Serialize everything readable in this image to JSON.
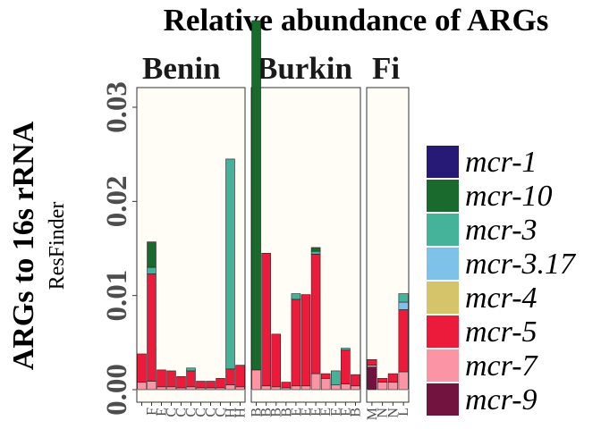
{
  "chart_data": {
    "type": "bar",
    "stacked": true,
    "title": "Relative abundance of ARGs",
    "ylabel": "ARGs to 16s rRNA",
    "ysublabel": "ResFinder",
    "ylim": [
      0,
      0.0405
    ],
    "yticks": [
      0.0,
      0.01,
      0.02,
      0.03
    ],
    "ytick_labels": [
      "0.00",
      "0.01",
      "0.02",
      "0.03"
    ],
    "panel_background": "#fffdf6",
    "legend": {
      "placement": "right"
    },
    "series_order": [
      "mcr-1",
      "mcr-10",
      "mcr-3",
      "mcr-3.17",
      "mcr-4",
      "mcr-5",
      "mcr-7",
      "mcr-9"
    ],
    "colors": {
      "mcr-1": "#271a76",
      "mcr-10": "#196a2c",
      "mcr-3": "#45b39a",
      "mcr-3.17": "#7ec2ea",
      "mcr-4": "#d6c46a",
      "mcr-5": "#ec1a3b",
      "mcr-7": "#fb94a4",
      "mcr-9": "#72133f"
    },
    "facets": [
      {
        "label": "Benin",
        "label_shown": "Benin",
        "bars": [
          {
            "tick": "",
            "segments": {
              "mcr-7": 0.0008,
              "mcr-5": 0.003
            }
          },
          {
            "tick": "F",
            "segments": {
              "mcr-7": 0.0009,
              "mcr-5": 0.0114,
              "mcr-3": 0.0007,
              "mcr-10": 0.0027
            }
          },
          {
            "tick": "E",
            "segments": {
              "mcr-7": 0.0003,
              "mcr-5": 0.0018
            }
          },
          {
            "tick": "C",
            "segments": {
              "mcr-7": 0.0003,
              "mcr-5": 0.0017
            }
          },
          {
            "tick": "C",
            "segments": {
              "mcr-7": 0.0002,
              "mcr-5": 0.0012
            }
          },
          {
            "tick": "C",
            "segments": {
              "mcr-7": 0.0003,
              "mcr-5": 0.0017,
              "mcr-3": 0.0003
            }
          },
          {
            "tick": "C",
            "segments": {
              "mcr-7": 0.0002,
              "mcr-5": 0.0007
            }
          },
          {
            "tick": "C",
            "segments": {
              "mcr-7": 0.0002,
              "mcr-5": 0.0007
            }
          },
          {
            "tick": "C",
            "segments": {
              "mcr-7": 0.0002,
              "mcr-5": 0.001
            }
          },
          {
            "tick": "H",
            "segments": {
              "mcr-7": 0.0005,
              "mcr-5": 0.0017,
              "mcr-3": 0.0223
            }
          },
          {
            "tick": "H",
            "segments": {
              "mcr-7": 0.0003,
              "mcr-5": 0.0023
            }
          }
        ]
      },
      {
        "label": "Burkina Faso",
        "label_shown": "Burkin",
        "bars": [
          {
            "tick": "B",
            "segments": {
              "mcr-7": 0.0021,
              "mcr-10": 0.0371
            }
          },
          {
            "tick": "B",
            "segments": {
              "mcr-7": 0.0004,
              "mcr-5": 0.0141
            }
          },
          {
            "tick": "B",
            "segments": {
              "mcr-7": 0.0003,
              "mcr-5": 0.0056
            }
          },
          {
            "tick": "B",
            "segments": {
              "mcr-7": 0.0002,
              "mcr-5": 0.0006
            }
          },
          {
            "tick": "E",
            "segments": {
              "mcr-7": 0.0004,
              "mcr-5": 0.0092,
              "mcr-3": 0.0006
            }
          },
          {
            "tick": "E",
            "segments": {
              "mcr-7": 0.0004,
              "mcr-5": 0.0097
            }
          },
          {
            "tick": "E",
            "segments": {
              "mcr-7": 0.0017,
              "mcr-5": 0.0127,
              "mcr-3": 0.0003,
              "mcr-10": 0.0004
            }
          },
          {
            "tick": "E",
            "segments": {
              "mcr-7": 0.0012,
              "mcr-5": 0.0005
            }
          },
          {
            "tick": "E",
            "segments": {
              "mcr-7": 0.0005,
              "mcr-3": 0.0015
            }
          },
          {
            "tick": "E",
            "segments": {
              "mcr-7": 0.0006,
              "mcr-5": 0.0036,
              "mcr-3": 0.0002
            }
          },
          {
            "tick": "B",
            "segments": {
              "mcr-7": 0.0004,
              "mcr-5": 0.0012
            }
          }
        ]
      },
      {
        "label": "Finland",
        "label_shown": "Fi",
        "bars": [
          {
            "tick": "M",
            "segments": {
              "mcr-9": 0.0024,
              "mcr-5": 0.0006,
              "mcr-7": 0.0002
            }
          },
          {
            "tick": "N",
            "segments": {
              "mcr-7": 0.0008,
              "mcr-5": 0.0004
            }
          },
          {
            "tick": "N",
            "segments": {
              "mcr-7": 0.0008,
              "mcr-5": 0.0009
            }
          },
          {
            "tick": "L",
            "segments": {
              "mcr-7": 0.0019,
              "mcr-5": 0.0066,
              "mcr-3.17": 0.0008,
              "mcr-3": 0.0009
            }
          }
        ]
      }
    ]
  }
}
